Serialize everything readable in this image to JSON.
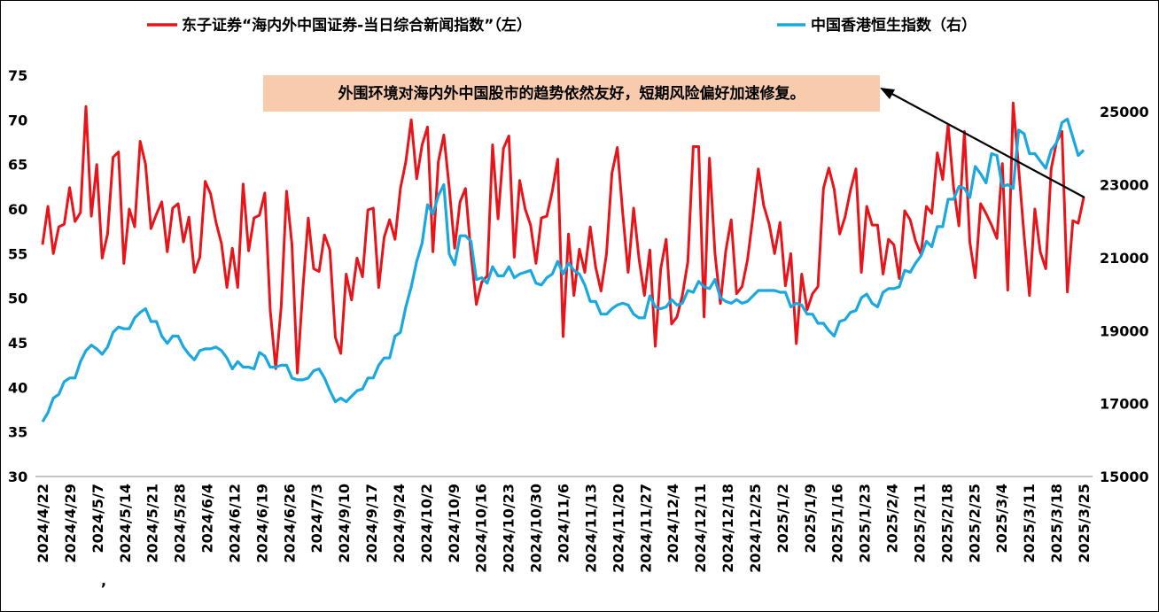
{
  "chart_data": {
    "type": "line",
    "left_axis": {
      "min": 30,
      "max": 75,
      "ticks": [
        30,
        35,
        40,
        45,
        50,
        55,
        60,
        65,
        70,
        75
      ]
    },
    "right_axis": {
      "min": 15000,
      "max": 26000,
      "ticks": [
        15000,
        17000,
        19000,
        21000,
        23000,
        25000
      ]
    },
    "x_tick_labels": [
      "2024/4/22",
      "2024/4/29",
      "2024/5/7",
      "2024/5/14",
      "2024/5/21",
      "2024/5/28",
      "2024/6/4",
      "2024/6/12",
      "2024/6/19",
      "2024/6/26",
      "2024/7/3",
      "2024/9/10",
      "2024/9/17",
      "2024/9/24",
      "2024/10/2",
      "2024/10/9",
      "2024/10/16",
      "2024/10/23",
      "2024/10/30",
      "2024/11/6",
      "2024/11/13",
      "2024/11/20",
      "2024/11/27",
      "2024/12/4",
      "2024/12/11",
      "2024/12/18",
      "2024/12/25",
      "2025/1/2",
      "2025/1/9",
      "2025/1/16",
      "2025/1/23",
      "2025/2/4",
      "2025/2/11",
      "2025/2/18",
      "2025/2/25",
      "2025/3/4",
      "2025/3/11",
      "2025/3/18",
      "2025/3/25"
    ],
    "stray_mark": ",",
    "series": [
      {
        "name": "东子证券“海内外中国证券-当日综合新闻指数”（左）",
        "axis": "left",
        "color": "#e8141a",
        "values": [
          56,
          60.3,
          55,
          58,
          58.3,
          62.4,
          58.6,
          59.6,
          71.5,
          59.2,
          65,
          54.5,
          57.2,
          65.8,
          66.4,
          53.9,
          60,
          58,
          67.6,
          65,
          57.8,
          59.4,
          60.8,
          55.2,
          60.1,
          60.6,
          56.3,
          59.1,
          52.9,
          54.6,
          63.1,
          61.7,
          58.5,
          56.1,
          51.2,
          55.6,
          51.2,
          62.8,
          55.3,
          59,
          59.3,
          61.8,
          48.6,
          42.1,
          49,
          62,
          56,
          41.6,
          51,
          59,
          53.3,
          53,
          57.1,
          55.4,
          45.6,
          43.8,
          52.7,
          49.8,
          54.5,
          52.4,
          59.9,
          60.1,
          51.2,
          56.8,
          58.8,
          56.6,
          62.3,
          65.3,
          70,
          63.4,
          67.2,
          69.2,
          55.2,
          65.3,
          68.3,
          62.4,
          55.6,
          60.8,
          62.3,
          55,
          49.3,
          51.8,
          52.5,
          67.2,
          58.9,
          66.8,
          68.2,
          54.6,
          63.2,
          60,
          58.2,
          53.9,
          59,
          59.2,
          62,
          65.6,
          45.7,
          57.2,
          50.3,
          55.5,
          52.9,
          58,
          53.5,
          50.8,
          55,
          64,
          66.9,
          59.5,
          52.9,
          60.1,
          54.4,
          50.3,
          55.4,
          44.6,
          53.3,
          56.6,
          47.1,
          47.9,
          50.3,
          54.1,
          67,
          67,
          47.9,
          65.7,
          55,
          49.4,
          55.3,
          58.8,
          50.5,
          51.3,
          54.3,
          59.1,
          64.5,
          60.4,
          58.3,
          55,
          58.5,
          51.4,
          55,
          44.9,
          52.7,
          48.7,
          50.5,
          51.3,
          62.3,
          64.6,
          62.2,
          57.2,
          59.1,
          62.1,
          64.5,
          52.9,
          60.3,
          58.2,
          58.2,
          52.7,
          56.6,
          56,
          52.2,
          59.8,
          58.8,
          56.4,
          54.9,
          60.3,
          59.5,
          66.3,
          63.3,
          69.5,
          62.5,
          58.1,
          68.7,
          56.3,
          52.3,
          60.6,
          59.5,
          58.2,
          56.7,
          65.1,
          50.9,
          71.9,
          64.6,
          57.1,
          50.3,
          60,
          55.2,
          53.3,
          64.5,
          67.5,
          68.7,
          50.7,
          58.7,
          58.4,
          61.3
        ]
      },
      {
        "name": "中国香港恒生指数（右）",
        "axis": "right",
        "color": "#19a9e0",
        "values": [
          16500,
          16750,
          17150,
          17250,
          17600,
          17700,
          17700,
          18150,
          18450,
          18600,
          18500,
          18350,
          18550,
          18950,
          19100,
          19050,
          19050,
          19350,
          19500,
          19600,
          19250,
          19250,
          18850,
          18650,
          18850,
          18850,
          18550,
          18350,
          18200,
          18450,
          18500,
          18500,
          18550,
          18450,
          18250,
          17950,
          18150,
          18000,
          18000,
          17950,
          18400,
          18300,
          18000,
          18000,
          18050,
          18050,
          17700,
          17650,
          17650,
          17700,
          17900,
          17950,
          17700,
          17350,
          17050,
          17150,
          17050,
          17200,
          17350,
          17400,
          17700,
          17700,
          18050,
          18250,
          18250,
          18850,
          18950,
          19650,
          20200,
          20900,
          21400,
          22450,
          22200,
          22700,
          23000,
          21100,
          20800,
          21600,
          21600,
          21450,
          20400,
          20450,
          20300,
          20750,
          20500,
          20500,
          20750,
          20450,
          20550,
          20600,
          20650,
          20300,
          20250,
          20450,
          20550,
          20900,
          20550,
          20850,
          20650,
          20550,
          20250,
          19800,
          19800,
          19450,
          19450,
          19600,
          19700,
          19750,
          19700,
          19450,
          19350,
          19350,
          19950,
          19650,
          19600,
          19650,
          19850,
          19700,
          19750,
          20100,
          20050,
          20350,
          20200,
          20150,
          20400,
          19900,
          19800,
          19750,
          19850,
          19750,
          19800,
          19950,
          20100,
          20100,
          20100,
          20100,
          20050,
          20050,
          19650,
          19750,
          19700,
          19450,
          19450,
          19200,
          19200,
          19000,
          18850,
          19250,
          19300,
          19500,
          19550,
          19900,
          20000,
          19750,
          19650,
          20050,
          20150,
          20150,
          20200,
          20650,
          20600,
          20850,
          21050,
          21450,
          21300,
          21850,
          21850,
          22600,
          22600,
          22950,
          22900,
          22650,
          23500,
          23300,
          23050,
          23850,
          23800,
          22950,
          23000,
          22900,
          24500,
          24400,
          23850,
          23850,
          23650,
          23450,
          23950,
          24150,
          24700,
          24800,
          24300,
          23800,
          23950
        ]
      }
    ],
    "annotation": "外围环境对海内外中国股市的趋势依然友好，短期风险偏好加速修复。",
    "grid": false,
    "legend_position": "top"
  }
}
